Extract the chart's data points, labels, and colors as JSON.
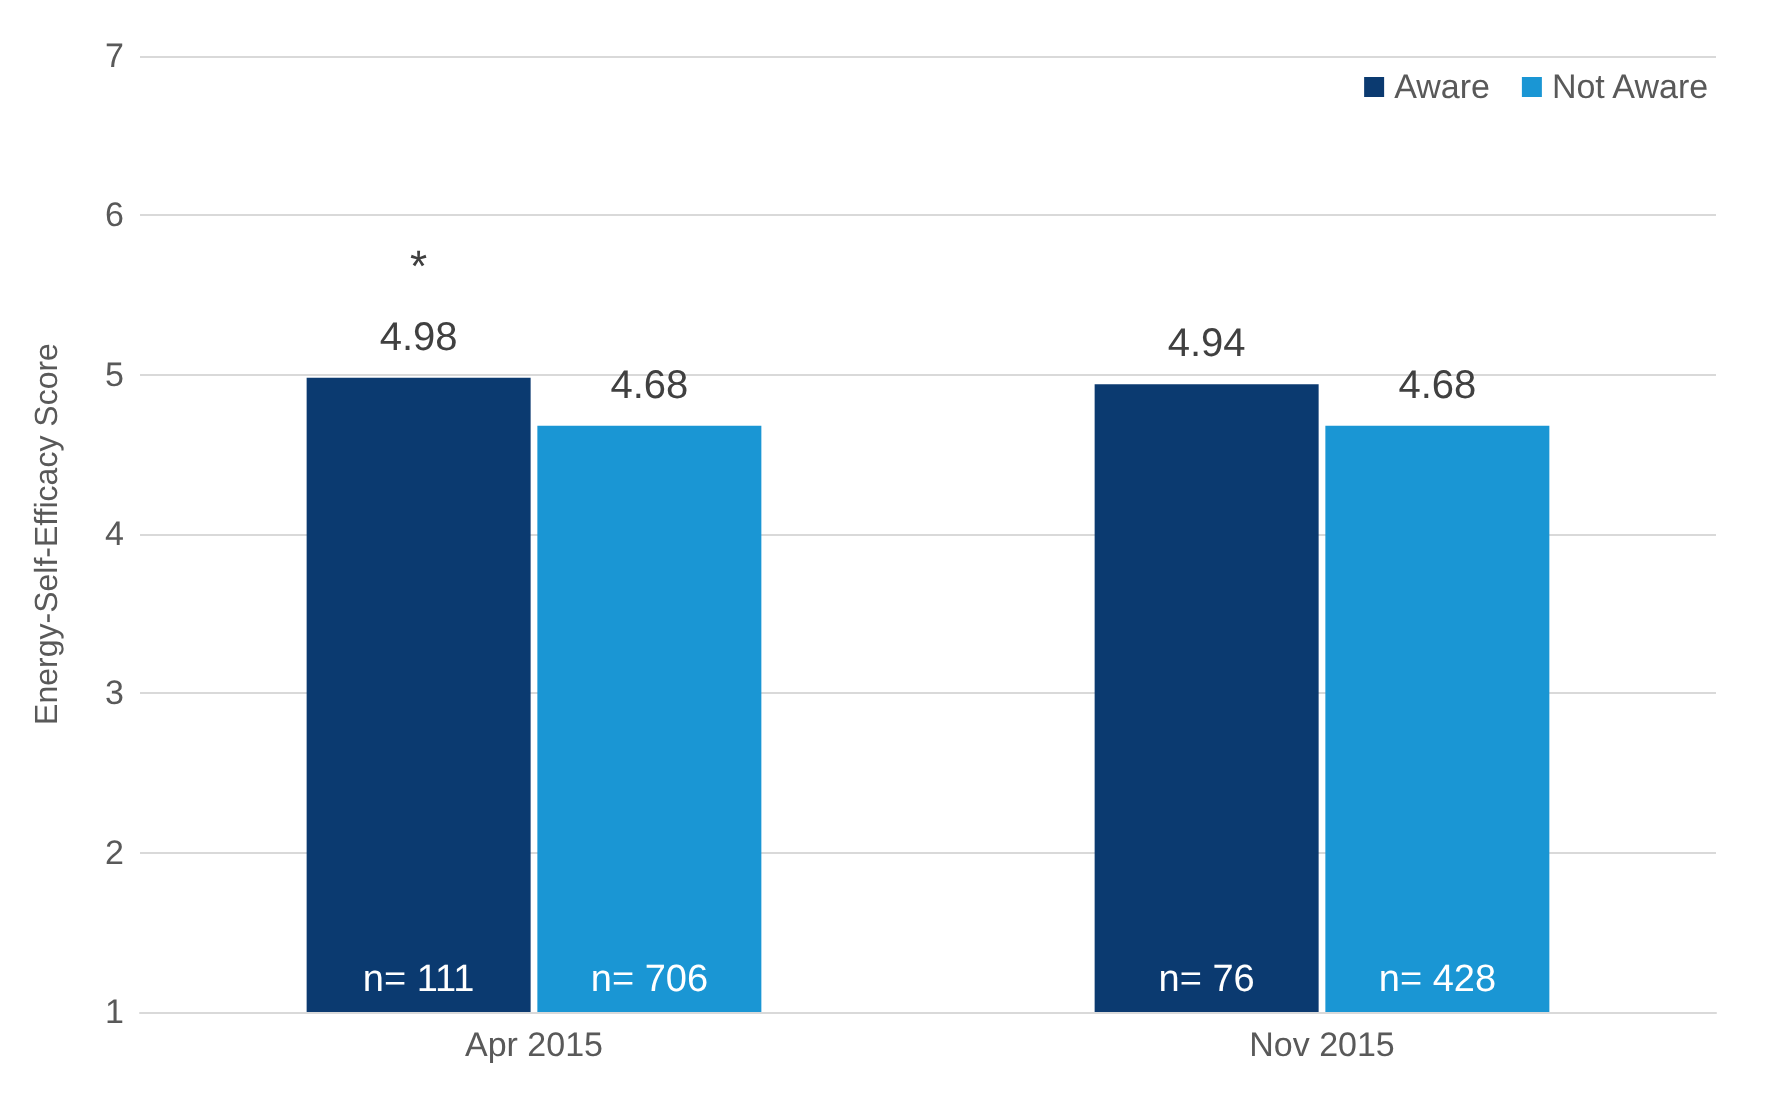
{
  "chart_data": {
    "type": "bar",
    "ylabel": "Energy-Self-Efficacy Score",
    "categories": [
      "Apr 2015",
      "Nov 2015"
    ],
    "series": [
      {
        "name": "Aware",
        "color": "#0b3a70",
        "values": [
          4.98,
          4.94
        ]
      },
      {
        "name": "Not Aware",
        "color": "#1a96d4",
        "values": [
          4.68,
          4.68
        ]
      }
    ],
    "ylim": [
      1,
      7
    ],
    "yticks": [
      1,
      2,
      3,
      4,
      5,
      6,
      7
    ],
    "grid": "y",
    "legend": "top right",
    "data_labels": true,
    "annotations": [
      {
        "text": "n= 111",
        "x": "Apr 2015",
        "y": 1.2
      },
      {
        "text": "n= 706",
        "x": "Apr 2015",
        "y": 1.2
      },
      "*",
      {
        "text": "n= 76",
        "x": "Nov 2015",
        "y": 1.2
      },
      {
        "text": "n= 428",
        "x": "Nov 2015",
        "y": 1.2
      }
    ]
  }
}
